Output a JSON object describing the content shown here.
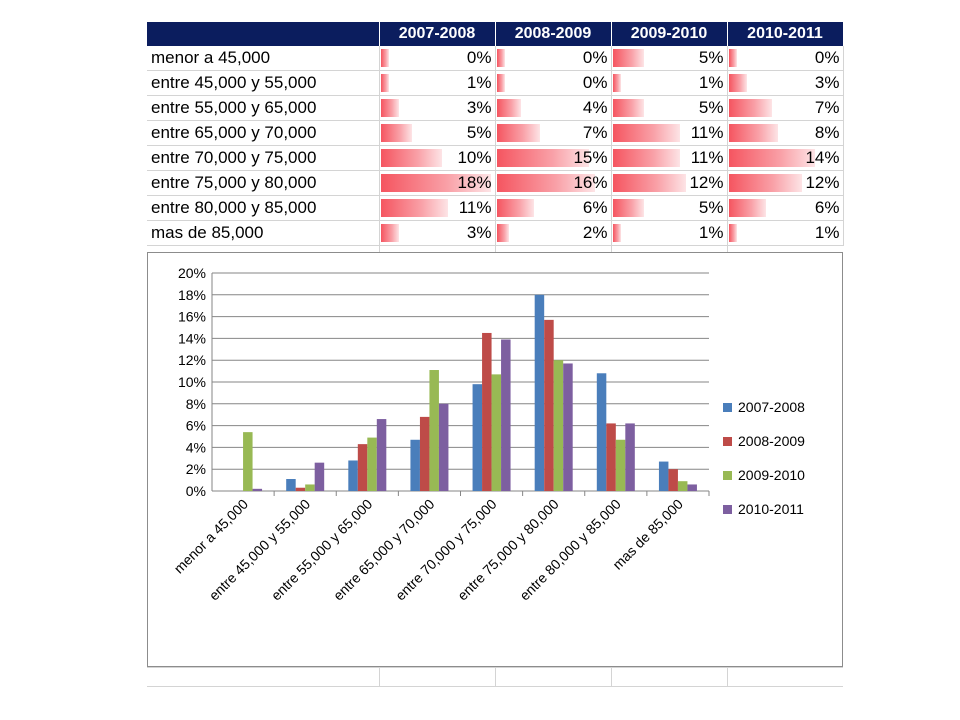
{
  "table": {
    "headers": [
      "2007-2008",
      "2008-2009",
      "2009-2010",
      "2010-2011"
    ],
    "rows": [
      {
        "label": "menor a 45,000",
        "cells": [
          "0%",
          "0%",
          "5%",
          "0%"
        ]
      },
      {
        "label": "entre 45,000 y 55,000",
        "cells": [
          "1%",
          "0%",
          "1%",
          "3%"
        ]
      },
      {
        "label": "entre 55,000 y 65,000",
        "cells": [
          "3%",
          "4%",
          "5%",
          "7%"
        ]
      },
      {
        "label": "entre 65,000 y 70,000",
        "cells": [
          "5%",
          "7%",
          "11%",
          "8%"
        ]
      },
      {
        "label": "entre 70,000 y 75,000",
        "cells": [
          "10%",
          "15%",
          "11%",
          "14%"
        ]
      },
      {
        "label": "entre 75,000 y 80,000",
        "cells": [
          "18%",
          "16%",
          "12%",
          "12%"
        ]
      },
      {
        "label": "entre 80,000 y 85,000",
        "cells": [
          "11%",
          "6%",
          "5%",
          "6%"
        ]
      },
      {
        "label": "mas de 85,000",
        "cells": [
          "3%",
          "2%",
          "1%",
          "1%"
        ]
      }
    ],
    "databar_color": "#f55560",
    "header_bg": "#0b1d5e"
  },
  "chart_data": {
    "type": "bar",
    "categories": [
      "menor a 45,000",
      "entre 45,000 y 55,000",
      "entre 55,000 y 65,000",
      "entre 65,000 y 70,000",
      "entre 70,000 y 75,000",
      "entre 75,000 y 80,000",
      "entre 80,000 y 85,000",
      "mas de 85,000"
    ],
    "series": [
      {
        "name": "2007-2008",
        "color": "#4a7ebb",
        "values": [
          0.0,
          1.1,
          2.8,
          4.7,
          9.8,
          18.0,
          10.8,
          2.7
        ]
      },
      {
        "name": "2008-2009",
        "color": "#be4b48",
        "values": [
          0.0,
          0.3,
          4.3,
          6.8,
          14.5,
          15.7,
          6.2,
          2.0
        ]
      },
      {
        "name": "2009-2010",
        "color": "#98b954",
        "values": [
          5.4,
          0.6,
          4.9,
          11.1,
          10.7,
          12.0,
          4.7,
          0.9
        ]
      },
      {
        "name": "2010-2011",
        "color": "#7d5fa0",
        "values": [
          0.2,
          2.6,
          6.6,
          8.0,
          13.9,
          11.7,
          6.2,
          0.6
        ]
      }
    ],
    "yticks": [
      "0%",
      "2%",
      "4%",
      "6%",
      "8%",
      "10%",
      "12%",
      "14%",
      "16%",
      "18%",
      "20%"
    ],
    "ylim": [
      0,
      20
    ],
    "xlabel": "",
    "ylabel": "",
    "grid": true,
    "legend": "right"
  }
}
